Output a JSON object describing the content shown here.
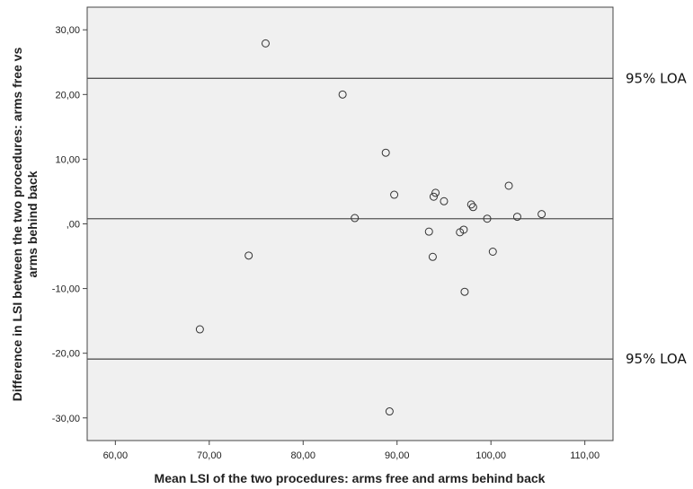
{
  "chart_data": {
    "type": "scatter",
    "xlabel": "Mean LSI of the two procedures: arms free and arms behind back",
    "ylabel_line1": "Difference in LSI between the two procedures: arms free vs",
    "ylabel_line2": "arms behind back",
    "xlim": [
      57,
      113
    ],
    "ylim": [
      -33.5,
      33.5
    ],
    "x_ticks": [
      60,
      70,
      80,
      90,
      100,
      110
    ],
    "x_tick_labels": [
      "60,00",
      "70,00",
      "80,00",
      "90,00",
      "100,00",
      "110,00"
    ],
    "y_ticks": [
      30,
      20,
      10,
      0,
      -10,
      -20,
      -30
    ],
    "y_tick_labels": [
      "30,00",
      "20,00",
      "10,00",
      ",00",
      "-10,00",
      "-20,00",
      "-30,00"
    ],
    "reference_lines": [
      {
        "y": 22.5,
        "label": "95% LOA"
      },
      {
        "y": 0.8,
        "label": ""
      },
      {
        "y": -20.9,
        "label": "95% LOA"
      }
    ],
    "points": [
      {
        "x": 76.0,
        "y": 27.9
      },
      {
        "x": 84.2,
        "y": 20.0
      },
      {
        "x": 88.8,
        "y": 11.0
      },
      {
        "x": 89.7,
        "y": 4.5
      },
      {
        "x": 85.5,
        "y": 0.9
      },
      {
        "x": 94.1,
        "y": 4.8
      },
      {
        "x": 93.9,
        "y": 4.2
      },
      {
        "x": 95.0,
        "y": 3.5
      },
      {
        "x": 97.9,
        "y": 3.0
      },
      {
        "x": 98.1,
        "y": 2.6
      },
      {
        "x": 101.9,
        "y": 5.9
      },
      {
        "x": 99.6,
        "y": 0.8
      },
      {
        "x": 102.8,
        "y": 1.1
      },
      {
        "x": 105.4,
        "y": 1.5
      },
      {
        "x": 93.4,
        "y": -1.2
      },
      {
        "x": 96.7,
        "y": -1.3
      },
      {
        "x": 97.1,
        "y": -0.9
      },
      {
        "x": 93.8,
        "y": -5.1
      },
      {
        "x": 100.2,
        "y": -4.3
      },
      {
        "x": 74.2,
        "y": -4.9
      },
      {
        "x": 97.2,
        "y": -10.5
      },
      {
        "x": 69.0,
        "y": -16.3
      },
      {
        "x": 89.2,
        "y": -29.0
      }
    ],
    "colors": {
      "plot_background": "#f0f0f0",
      "frame": "#444444",
      "line": "#555555",
      "marker": "#333333"
    }
  }
}
